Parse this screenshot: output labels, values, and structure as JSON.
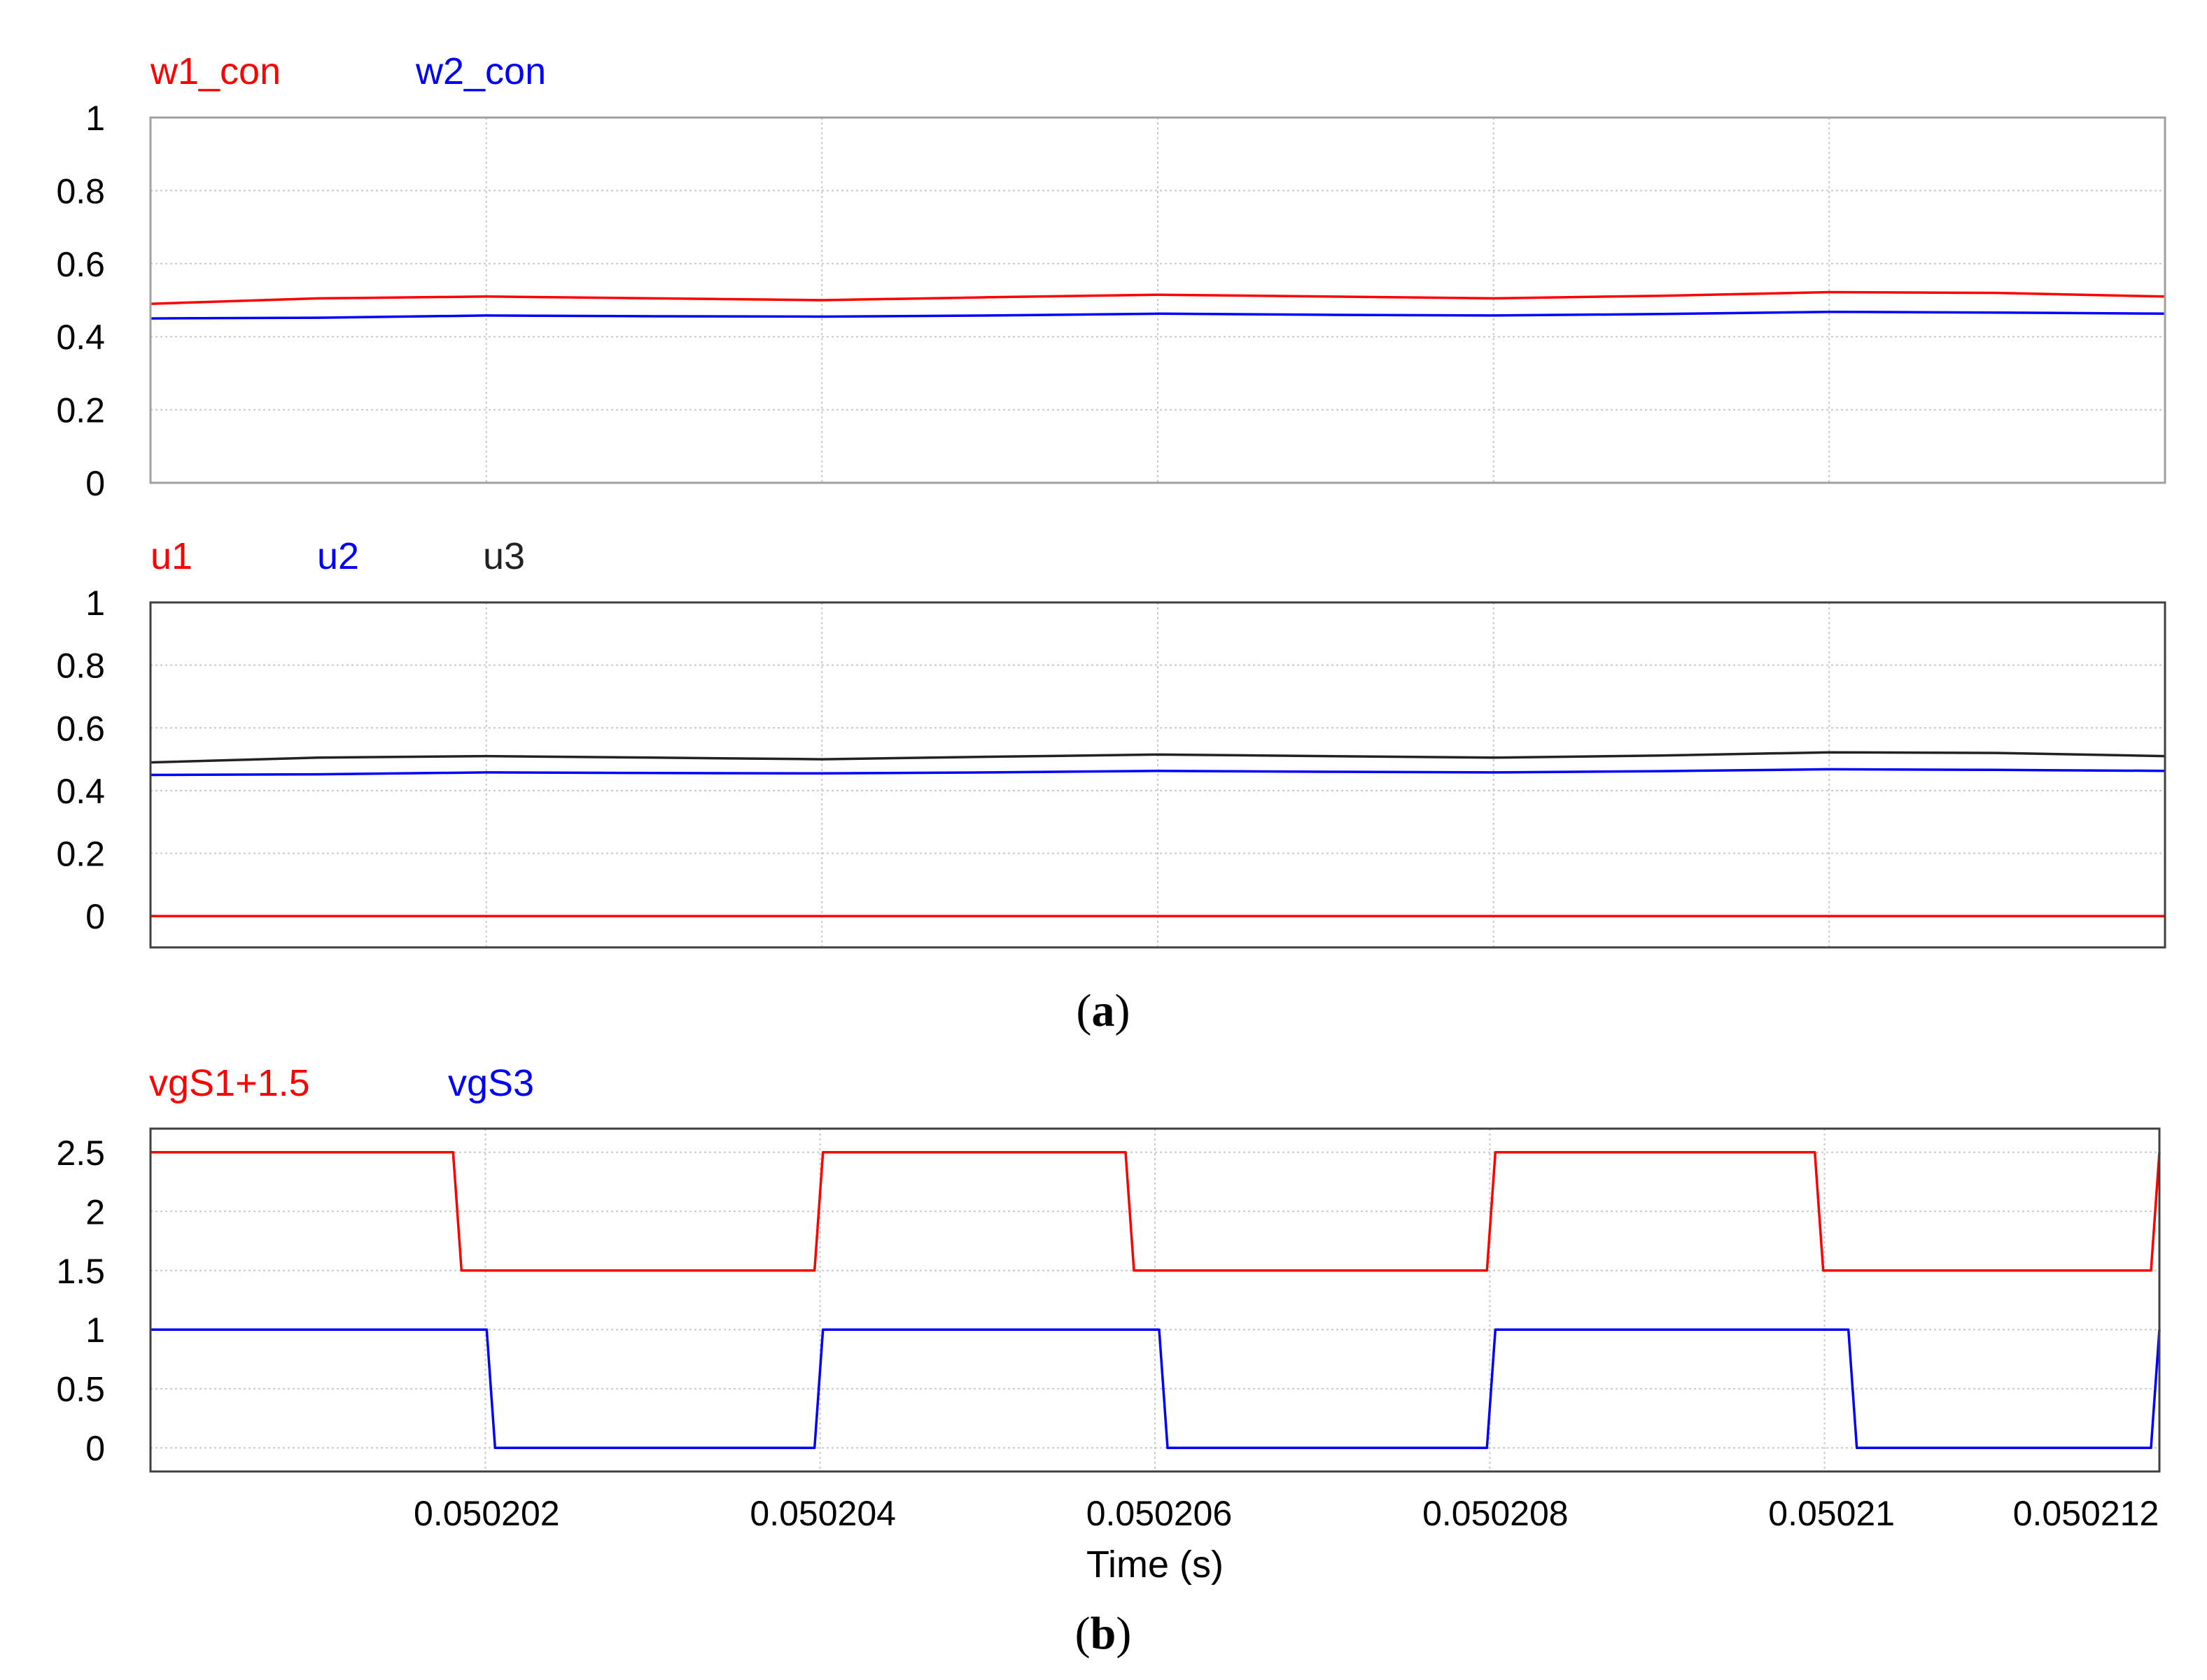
{
  "chart_data": [
    {
      "type": "line",
      "series": [
        {
          "name": "w1_con",
          "color": "#ff0000",
          "x": [
            0.0502,
            0.050201,
            0.050202,
            0.050203,
            0.050204,
            0.050205,
            0.050206,
            0.050207,
            0.050208,
            0.050209,
            0.05021,
            0.050211,
            0.050212
          ],
          "y": [
            0.49,
            0.505,
            0.51,
            0.505,
            0.5,
            0.508,
            0.515,
            0.51,
            0.505,
            0.512,
            0.522,
            0.52,
            0.51
          ]
        },
        {
          "name": "w2_con",
          "color": "#0000ff",
          "x": [
            0.0502,
            0.050201,
            0.050202,
            0.050203,
            0.050204,
            0.050205,
            0.050206,
            0.050207,
            0.050208,
            0.050209,
            0.05021,
            0.050211,
            0.050212
          ],
          "y": [
            0.45,
            0.452,
            0.458,
            0.456,
            0.455,
            0.458,
            0.463,
            0.46,
            0.458,
            0.462,
            0.468,
            0.466,
            0.463
          ]
        }
      ],
      "xlim": [
        0.0502,
        0.050212
      ],
      "ylim": [
        0,
        1
      ],
      "yticks": [
        "0",
        "0.2",
        "0.4",
        "0.6",
        "0.8",
        "1"
      ],
      "grid": true
    },
    {
      "type": "line",
      "series": [
        {
          "name": "u1",
          "color": "#ff0000",
          "x": [
            0.0502,
            0.050212
          ],
          "y": [
            0,
            0
          ]
        },
        {
          "name": "u2",
          "color": "#0000ff",
          "x": [
            0.0502,
            0.050201,
            0.050202,
            0.050203,
            0.050204,
            0.050205,
            0.050206,
            0.050207,
            0.050208,
            0.050209,
            0.05021,
            0.050211,
            0.050212
          ],
          "y": [
            0.45,
            0.452,
            0.458,
            0.456,
            0.455,
            0.458,
            0.463,
            0.46,
            0.458,
            0.462,
            0.468,
            0.466,
            0.463
          ]
        },
        {
          "name": "u3",
          "color": "#222222",
          "x": [
            0.0502,
            0.050201,
            0.050202,
            0.050203,
            0.050204,
            0.050205,
            0.050206,
            0.050207,
            0.050208,
            0.050209,
            0.05021,
            0.050211,
            0.050212
          ],
          "y": [
            0.49,
            0.505,
            0.51,
            0.505,
            0.5,
            0.508,
            0.515,
            0.51,
            0.505,
            0.512,
            0.522,
            0.52,
            0.51
          ]
        }
      ],
      "xlim": [
        0.0502,
        0.050212
      ],
      "ylim": [
        -0.1,
        1
      ],
      "yticks": [
        "0",
        "0.2",
        "0.4",
        "0.6",
        "0.8",
        "1"
      ],
      "grid": true
    },
    {
      "type": "line",
      "series": [
        {
          "name": "vgS1+1.5",
          "color": "#ff0000",
          "x": [
            0.0502,
            0.0502018,
            0.05020185,
            0.05020395,
            0.050204,
            0.0502058,
            0.05020585,
            0.05020795,
            0.050208,
            0.0502099,
            0.05020995,
            0.0502119,
            0.05021195
          ],
          "y": [
            2.5,
            2.5,
            1.5,
            1.5,
            2.5,
            2.5,
            1.5,
            1.5,
            2.5,
            2.5,
            1.5,
            1.5,
            2.5
          ]
        },
        {
          "name": "vgS3",
          "color": "#0000ff",
          "x": [
            0.0502,
            0.050202,
            0.05020205,
            0.05020395,
            0.050204,
            0.050206,
            0.05020605,
            0.05020795,
            0.050208,
            0.0502101,
            0.05021015,
            0.0502119,
            0.05021195
          ],
          "y": [
            1,
            1,
            0,
            0,
            1,
            1,
            0,
            0,
            1,
            1,
            0,
            0,
            1
          ]
        }
      ],
      "xlim": [
        0.0502,
        0.05021195
      ],
      "ylim": [
        -0.2,
        2.7
      ],
      "yticks": [
        "0",
        "0.5",
        "1",
        "1.5",
        "2",
        "2.5"
      ],
      "xticks": [
        "0.050202",
        "0.050204",
        "0.050206",
        "0.050208",
        "0.05021",
        "0.050212"
      ],
      "xlabel": "Time (s)",
      "grid": true
    }
  ],
  "captions": {
    "a_open": "(",
    "a_letter": "a",
    "a_close": ")",
    "b_open": "(",
    "b_letter": "b",
    "b_close": ")"
  }
}
